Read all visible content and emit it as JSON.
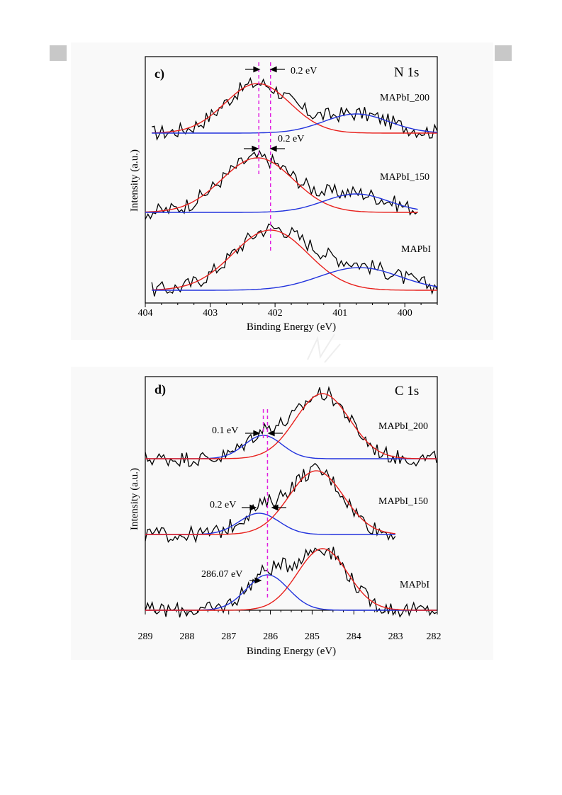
{
  "colors": {
    "raw": "#000000",
    "peak_red": "#e8201c",
    "peak_blue": "#2233dd",
    "guide": "#e020e0",
    "band": "#f9f9f9",
    "corner": "#c8c8c8"
  },
  "panel_c": {
    "panel_label": "c)",
    "element_label": "N 1s",
    "xlabel": "Binding Energy (eV)",
    "ylabel": "Intensity (a.u.)",
    "ticks": [
      "404",
      "403",
      "402",
      "401",
      "400"
    ],
    "annotations": {
      "shift_top": "0.2 eV",
      "shift_mid": "0.2 eV"
    },
    "series_labels": {
      "s200": "MAPbI_200",
      "s150": "MAPbI_150",
      "s0": "MAPbI"
    }
  },
  "panel_d": {
    "panel_label": "d)",
    "element_label": "C 1s",
    "xlabel": "Binding Energy (eV)",
    "ylabel": "Intensity (a.u.)",
    "ticks": [
      "289",
      "288",
      "287",
      "286",
      "285",
      "284",
      "283",
      "282"
    ],
    "annotations": {
      "shift_top": "0.1 eV",
      "shift_mid": "0.2 eV",
      "peak_pos": "286.07 eV"
    },
    "series_labels": {
      "s200": "MAPbI_200",
      "s150": "MAPbI_150",
      "s0": "MAPbI"
    }
  },
  "chart_data": [
    {
      "type": "line",
      "title": "N 1s",
      "xlabel": "Binding Energy (eV)",
      "ylabel": "Intensity (a.u.)",
      "xlim": [
        404,
        399.5
      ],
      "x_reversed": true,
      "y_ticks_shown": false,
      "offsets": {
        "MAPbI_200": 2.2,
        "MAPbI_150": 1.1,
        "MAPbI": 0
      },
      "series": [
        {
          "name": "MAPbI_200",
          "x_range": [
            403.9,
            399.5
          ],
          "components": [
            {
              "center": 402.27,
              "height": 0.7,
              "sigma": 0.5,
              "color": "red"
            },
            {
              "center": 400.75,
              "height": 0.27,
              "sigma": 0.5,
              "color": "blue"
            }
          ]
        },
        {
          "name": "MAPbI_150",
          "x_range": [
            404.0,
            399.8
          ],
          "components": [
            {
              "center": 402.27,
              "height": 0.77,
              "sigma": 0.55,
              "color": "red"
            },
            {
              "center": 400.75,
              "height": 0.26,
              "sigma": 0.5,
              "color": "blue"
            }
          ]
        },
        {
          "name": "MAPbI",
          "x_range": [
            403.9,
            399.5
          ],
          "components": [
            {
              "center": 402.07,
              "height": 0.85,
              "sigma": 0.58,
              "color": "red"
            },
            {
              "center": 400.7,
              "height": 0.32,
              "sigma": 0.62,
              "color": "blue"
            }
          ]
        }
      ],
      "guides": [
        402.25,
        402.07
      ]
    },
    {
      "type": "line",
      "title": "C 1s",
      "xlabel": "Binding Energy (eV)",
      "ylabel": "Intensity (a.u.)",
      "xlim": [
        289,
        282
      ],
      "x_reversed": true,
      "y_ticks_shown": false,
      "offsets": {
        "MAPbI_200": 2.2,
        "MAPbI_150": 1.1,
        "MAPbI": 0
      },
      "series": [
        {
          "name": "MAPbI_200",
          "x_range": [
            289,
            282
          ],
          "components": [
            {
              "center": 286.17,
              "height": 0.33,
              "sigma": 0.45,
              "color": "blue"
            },
            {
              "center": 284.75,
              "height": 0.92,
              "sigma": 0.65,
              "color": "red"
            }
          ]
        },
        {
          "name": "MAPbI_150",
          "x_range": [
            289,
            283.0
          ],
          "components": [
            {
              "center": 286.27,
              "height": 0.3,
              "sigma": 0.48,
              "color": "blue"
            },
            {
              "center": 284.9,
              "height": 0.9,
              "sigma": 0.65,
              "color": "red"
            }
          ]
        },
        {
          "name": "MAPbI",
          "x_range": [
            289,
            282
          ],
          "components": [
            {
              "center": 286.07,
              "height": 0.5,
              "sigma": 0.5,
              "color": "blue"
            },
            {
              "center": 284.75,
              "height": 0.87,
              "sigma": 0.6,
              "color": "red"
            }
          ]
        }
      ],
      "guides": [
        286.17,
        286.07
      ]
    }
  ]
}
